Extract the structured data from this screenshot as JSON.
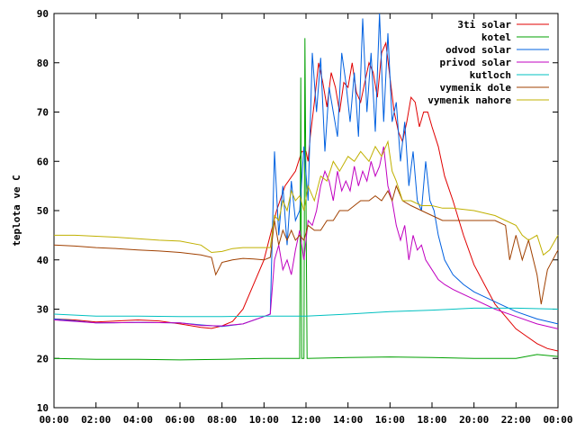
{
  "chart_data": {
    "type": "line",
    "title": "",
    "xlabel": "",
    "ylabel": "teplota ve C",
    "ylim": [
      10,
      90
    ],
    "xlim": [
      0,
      24
    ],
    "y_ticks": [
      10,
      20,
      30,
      40,
      50,
      60,
      70,
      80,
      90
    ],
    "x_ticks": [
      "00:00",
      "02:00",
      "04:00",
      "06:00",
      "08:00",
      "10:00",
      "12:00",
      "14:00",
      "16:00",
      "18:00",
      "20:00",
      "22:00",
      "00:00"
    ],
    "legend_position": "top-right",
    "grid": false,
    "series": [
      {
        "name": "3ti solar",
        "color": "#e00000",
        "points": [
          [
            0,
            28
          ],
          [
            1,
            27.8
          ],
          [
            2,
            27.4
          ],
          [
            3,
            27.6
          ],
          [
            4,
            27.8
          ],
          [
            5,
            27.6
          ],
          [
            6,
            27
          ],
          [
            7,
            26.3
          ],
          [
            7.5,
            26.1
          ],
          [
            8,
            26.6
          ],
          [
            8.5,
            27.5
          ],
          [
            9,
            30
          ],
          [
            9.5,
            35
          ],
          [
            10,
            40
          ],
          [
            10.3,
            45
          ],
          [
            10.6,
            50
          ],
          [
            11,
            55
          ],
          [
            11.5,
            58
          ],
          [
            11.8,
            62
          ],
          [
            12,
            62
          ],
          [
            12.1,
            60
          ],
          [
            12.2,
            65
          ],
          [
            12.4,
            72
          ],
          [
            12.6,
            80
          ],
          [
            12.8,
            76
          ],
          [
            13,
            71
          ],
          [
            13.2,
            78
          ],
          [
            13.4,
            75
          ],
          [
            13.6,
            70
          ],
          [
            13.8,
            76
          ],
          [
            14,
            75
          ],
          [
            14.2,
            80
          ],
          [
            14.4,
            74
          ],
          [
            14.6,
            72
          ],
          [
            14.8,
            76
          ],
          [
            15,
            80
          ],
          [
            15.2,
            78
          ],
          [
            15.4,
            73
          ],
          [
            15.6,
            82
          ],
          [
            15.8,
            84
          ],
          [
            16,
            77
          ],
          [
            16.2,
            70
          ],
          [
            16.4,
            66
          ],
          [
            16.6,
            64
          ],
          [
            16.8,
            68
          ],
          [
            17,
            73
          ],
          [
            17.2,
            72
          ],
          [
            17.4,
            67
          ],
          [
            17.6,
            70
          ],
          [
            17.8,
            70
          ],
          [
            18,
            67
          ],
          [
            18.3,
            63
          ],
          [
            18.6,
            57
          ],
          [
            19,
            52
          ],
          [
            19.5,
            45
          ],
          [
            20,
            39
          ],
          [
            20.5,
            35
          ],
          [
            21,
            31
          ],
          [
            21.5,
            28.5
          ],
          [
            22,
            26
          ],
          [
            22.5,
            24.5
          ],
          [
            23,
            23
          ],
          [
            23.5,
            22
          ],
          [
            24,
            21.5
          ]
        ]
      },
      {
        "name": "kotel",
        "color": "#00a000",
        "points": [
          [
            0,
            20
          ],
          [
            2,
            19.8
          ],
          [
            4,
            19.8
          ],
          [
            6,
            19.7
          ],
          [
            8,
            19.8
          ],
          [
            10,
            20
          ],
          [
            11.7,
            20
          ],
          [
            11.75,
            77
          ],
          [
            11.8,
            20
          ],
          [
            11.9,
            20
          ],
          [
            11.95,
            85
          ],
          [
            12.05,
            20
          ],
          [
            14,
            20.2
          ],
          [
            16,
            20.3
          ],
          [
            18,
            20.2
          ],
          [
            20,
            20
          ],
          [
            22,
            20
          ],
          [
            23,
            20.8
          ],
          [
            24,
            20.4
          ]
        ]
      },
      {
        "name": "odvod solar",
        "color": "#0060e0",
        "points": [
          [
            0,
            28
          ],
          [
            2,
            27.2
          ],
          [
            4,
            27.3
          ],
          [
            6,
            27.2
          ],
          [
            7,
            26.8
          ],
          [
            8,
            26.5
          ],
          [
            9,
            27
          ],
          [
            10,
            28.5
          ],
          [
            10.3,
            29
          ],
          [
            10.5,
            62
          ],
          [
            10.7,
            45
          ],
          [
            10.9,
            55
          ],
          [
            11.1,
            43
          ],
          [
            11.3,
            56
          ],
          [
            11.5,
            48
          ],
          [
            11.7,
            50
          ],
          [
            11.9,
            63
          ],
          [
            12.1,
            52
          ],
          [
            12.3,
            82
          ],
          [
            12.5,
            70
          ],
          [
            12.7,
            81
          ],
          [
            12.9,
            62
          ],
          [
            13.1,
            75
          ],
          [
            13.3,
            70
          ],
          [
            13.5,
            65
          ],
          [
            13.7,
            82
          ],
          [
            13.9,
            76
          ],
          [
            14.1,
            68
          ],
          [
            14.3,
            78
          ],
          [
            14.5,
            65
          ],
          [
            14.7,
            89
          ],
          [
            14.9,
            70
          ],
          [
            15.1,
            82
          ],
          [
            15.3,
            66
          ],
          [
            15.5,
            90
          ],
          [
            15.7,
            68
          ],
          [
            15.9,
            86
          ],
          [
            16.1,
            68
          ],
          [
            16.3,
            72
          ],
          [
            16.5,
            60
          ],
          [
            16.7,
            68
          ],
          [
            16.9,
            55
          ],
          [
            17.1,
            62
          ],
          [
            17.3,
            52
          ],
          [
            17.5,
            50
          ],
          [
            17.7,
            60
          ],
          [
            17.9,
            52
          ],
          [
            18.1,
            50
          ],
          [
            18.3,
            45
          ],
          [
            18.6,
            40
          ],
          [
            19,
            37
          ],
          [
            19.5,
            35
          ],
          [
            20,
            33.5
          ],
          [
            21,
            31.5
          ],
          [
            22,
            29.5
          ],
          [
            23,
            28
          ],
          [
            24,
            27
          ]
        ]
      },
      {
        "name": "privod solar",
        "color": "#c000c0",
        "points": [
          [
            0,
            27.8
          ],
          [
            2,
            27.2
          ],
          [
            4,
            27.3
          ],
          [
            6,
            27.2
          ],
          [
            7,
            26.7
          ],
          [
            8,
            26.6
          ],
          [
            9,
            27
          ],
          [
            10,
            28.5
          ],
          [
            10.3,
            29
          ],
          [
            10.5,
            40
          ],
          [
            10.7,
            43
          ],
          [
            10.9,
            38
          ],
          [
            11.1,
            40
          ],
          [
            11.3,
            37
          ],
          [
            11.5,
            42
          ],
          [
            11.7,
            46
          ],
          [
            11.9,
            40
          ],
          [
            12.1,
            48
          ],
          [
            12.3,
            47
          ],
          [
            12.5,
            50
          ],
          [
            12.7,
            55
          ],
          [
            12.9,
            58
          ],
          [
            13.1,
            56
          ],
          [
            13.3,
            52
          ],
          [
            13.5,
            58
          ],
          [
            13.7,
            54
          ],
          [
            13.9,
            56
          ],
          [
            14.1,
            54
          ],
          [
            14.3,
            59
          ],
          [
            14.5,
            55
          ],
          [
            14.7,
            58
          ],
          [
            14.9,
            56
          ],
          [
            15.1,
            60
          ],
          [
            15.3,
            57
          ],
          [
            15.5,
            59
          ],
          [
            15.7,
            63
          ],
          [
            15.9,
            55
          ],
          [
            16.1,
            52
          ],
          [
            16.3,
            47
          ],
          [
            16.5,
            44
          ],
          [
            16.7,
            47
          ],
          [
            16.9,
            40
          ],
          [
            17.1,
            45
          ],
          [
            17.3,
            42
          ],
          [
            17.5,
            43
          ],
          [
            17.7,
            40
          ],
          [
            18,
            38
          ],
          [
            18.3,
            36
          ],
          [
            18.6,
            35
          ],
          [
            19,
            34
          ],
          [
            20,
            32
          ],
          [
            21,
            30
          ],
          [
            22,
            28.5
          ],
          [
            23,
            27
          ],
          [
            24,
            26
          ]
        ]
      },
      {
        "name": "kutloch",
        "color": "#00c0c0",
        "points": [
          [
            0,
            29
          ],
          [
            2,
            28.6
          ],
          [
            4,
            28.6
          ],
          [
            6,
            28.5
          ],
          [
            8,
            28.5
          ],
          [
            10,
            28.6
          ],
          [
            12,
            28.6
          ],
          [
            14,
            29
          ],
          [
            16,
            29.5
          ],
          [
            18,
            29.8
          ],
          [
            20,
            30.2
          ],
          [
            22,
            30.2
          ],
          [
            24,
            30
          ]
        ]
      },
      {
        "name": "vymenik dole",
        "color": "#a04000",
        "points": [
          [
            0,
            43
          ],
          [
            1,
            42.8
          ],
          [
            2,
            42.5
          ],
          [
            3,
            42.3
          ],
          [
            4,
            42
          ],
          [
            5,
            41.8
          ],
          [
            6,
            41.5
          ],
          [
            7,
            41
          ],
          [
            7.5,
            40.5
          ],
          [
            7.7,
            37
          ],
          [
            8,
            39.5
          ],
          [
            8.5,
            40
          ],
          [
            9,
            40.3
          ],
          [
            9.5,
            40.2
          ],
          [
            10,
            40
          ],
          [
            10.3,
            40.5
          ],
          [
            10.5,
            48
          ],
          [
            10.7,
            43
          ],
          [
            10.9,
            46
          ],
          [
            11.1,
            44
          ],
          [
            11.3,
            46
          ],
          [
            11.5,
            44
          ],
          [
            11.7,
            45
          ],
          [
            11.9,
            44
          ],
          [
            12.1,
            47
          ],
          [
            12.4,
            46
          ],
          [
            12.7,
            46
          ],
          [
            13,
            48
          ],
          [
            13.3,
            48
          ],
          [
            13.6,
            50
          ],
          [
            14,
            50
          ],
          [
            14.3,
            51
          ],
          [
            14.6,
            52
          ],
          [
            15,
            52
          ],
          [
            15.3,
            53
          ],
          [
            15.6,
            52
          ],
          [
            15.9,
            54
          ],
          [
            16.1,
            52
          ],
          [
            16.3,
            55
          ],
          [
            16.6,
            52
          ],
          [
            17,
            51
          ],
          [
            17.5,
            50
          ],
          [
            18,
            49
          ],
          [
            18.5,
            48
          ],
          [
            19,
            48
          ],
          [
            20,
            48
          ],
          [
            21,
            48
          ],
          [
            21.5,
            47
          ],
          [
            21.7,
            40
          ],
          [
            22,
            45
          ],
          [
            22.3,
            40
          ],
          [
            22.6,
            44
          ],
          [
            23,
            37
          ],
          [
            23.2,
            31
          ],
          [
            23.5,
            38
          ],
          [
            24,
            42
          ]
        ]
      },
      {
        "name": "vymenik nahore",
        "color": "#c0b000",
        "points": [
          [
            0,
            45
          ],
          [
            1,
            45
          ],
          [
            2,
            44.8
          ],
          [
            3,
            44.6
          ],
          [
            4,
            44.3
          ],
          [
            5,
            44
          ],
          [
            6,
            43.8
          ],
          [
            7,
            43
          ],
          [
            7.5,
            41.5
          ],
          [
            8,
            41.7
          ],
          [
            8.5,
            42.3
          ],
          [
            9,
            42.5
          ],
          [
            10,
            42.5
          ],
          [
            10.3,
            42.5
          ],
          [
            10.5,
            49
          ],
          [
            10.7,
            48
          ],
          [
            10.9,
            52
          ],
          [
            11.1,
            50
          ],
          [
            11.3,
            54
          ],
          [
            11.5,
            52
          ],
          [
            11.7,
            53
          ],
          [
            11.9,
            50
          ],
          [
            12.1,
            55
          ],
          [
            12.4,
            52
          ],
          [
            12.7,
            57
          ],
          [
            13,
            56
          ],
          [
            13.3,
            60
          ],
          [
            13.6,
            58
          ],
          [
            14,
            61
          ],
          [
            14.3,
            60
          ],
          [
            14.6,
            62
          ],
          [
            15,
            60
          ],
          [
            15.3,
            63
          ],
          [
            15.6,
            61
          ],
          [
            15.9,
            64
          ],
          [
            16.1,
            58
          ],
          [
            16.3,
            56
          ],
          [
            16.6,
            52
          ],
          [
            17,
            52
          ],
          [
            17.5,
            51
          ],
          [
            18,
            51
          ],
          [
            18.5,
            50.5
          ],
          [
            19,
            50.5
          ],
          [
            20,
            50
          ],
          [
            21,
            49
          ],
          [
            21.5,
            48
          ],
          [
            22,
            47
          ],
          [
            22.3,
            45
          ],
          [
            22.6,
            44
          ],
          [
            23,
            45
          ],
          [
            23.3,
            41
          ],
          [
            23.6,
            42
          ],
          [
            24,
            45
          ]
        ]
      }
    ]
  }
}
